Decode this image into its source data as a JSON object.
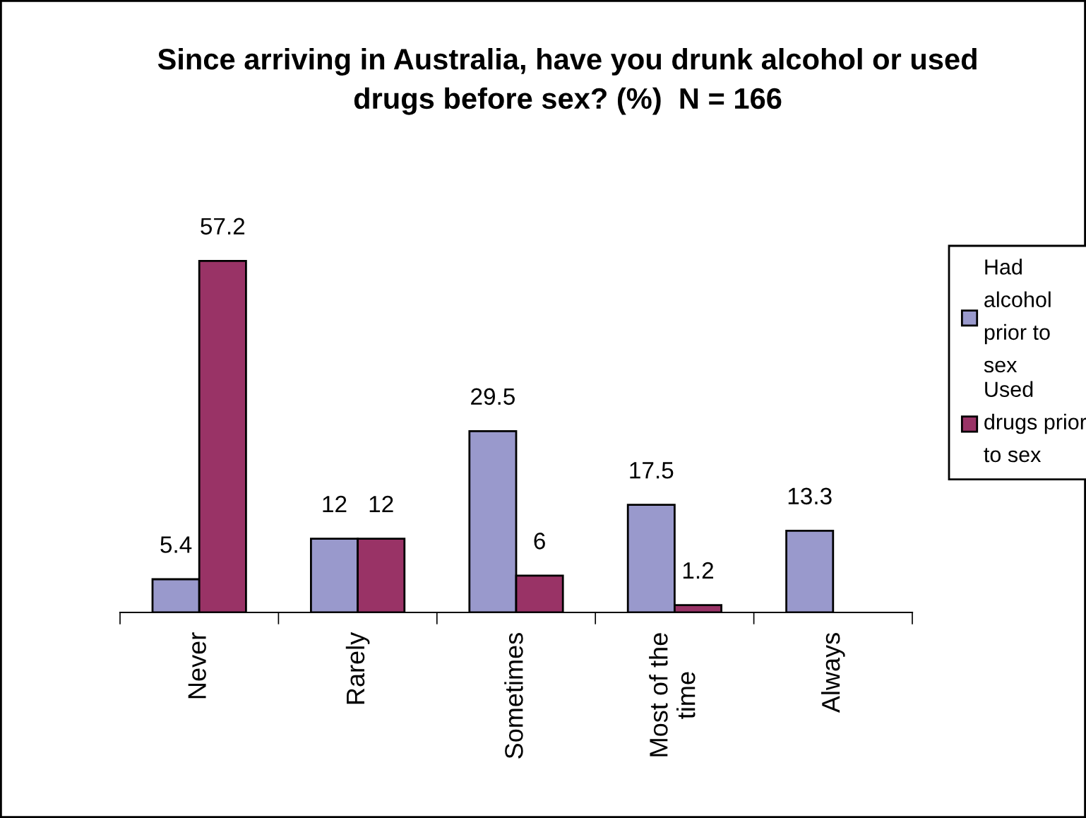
{
  "chart_data": {
    "type": "bar",
    "title": "Since arriving in Australia, have you drunk alcohol or used\ndrugs before sex? (%)  N = 166",
    "categories": [
      "Never",
      "Rarely",
      "Sometimes",
      "Most of the\ntime",
      "Always"
    ],
    "series": [
      {
        "name": "Had\nalcohol\nprior to\nsex",
        "color": "#9999cc",
        "values": [
          5.4,
          12,
          29.5,
          17.5,
          13.3
        ]
      },
      {
        "name": "Used\ndrugs prior\nto sex",
        "color": "#993366",
        "values": [
          57.2,
          12,
          6,
          1.2,
          null
        ]
      }
    ],
    "tick_labels": "x",
    "data_labels": true,
    "legend": "right"
  }
}
